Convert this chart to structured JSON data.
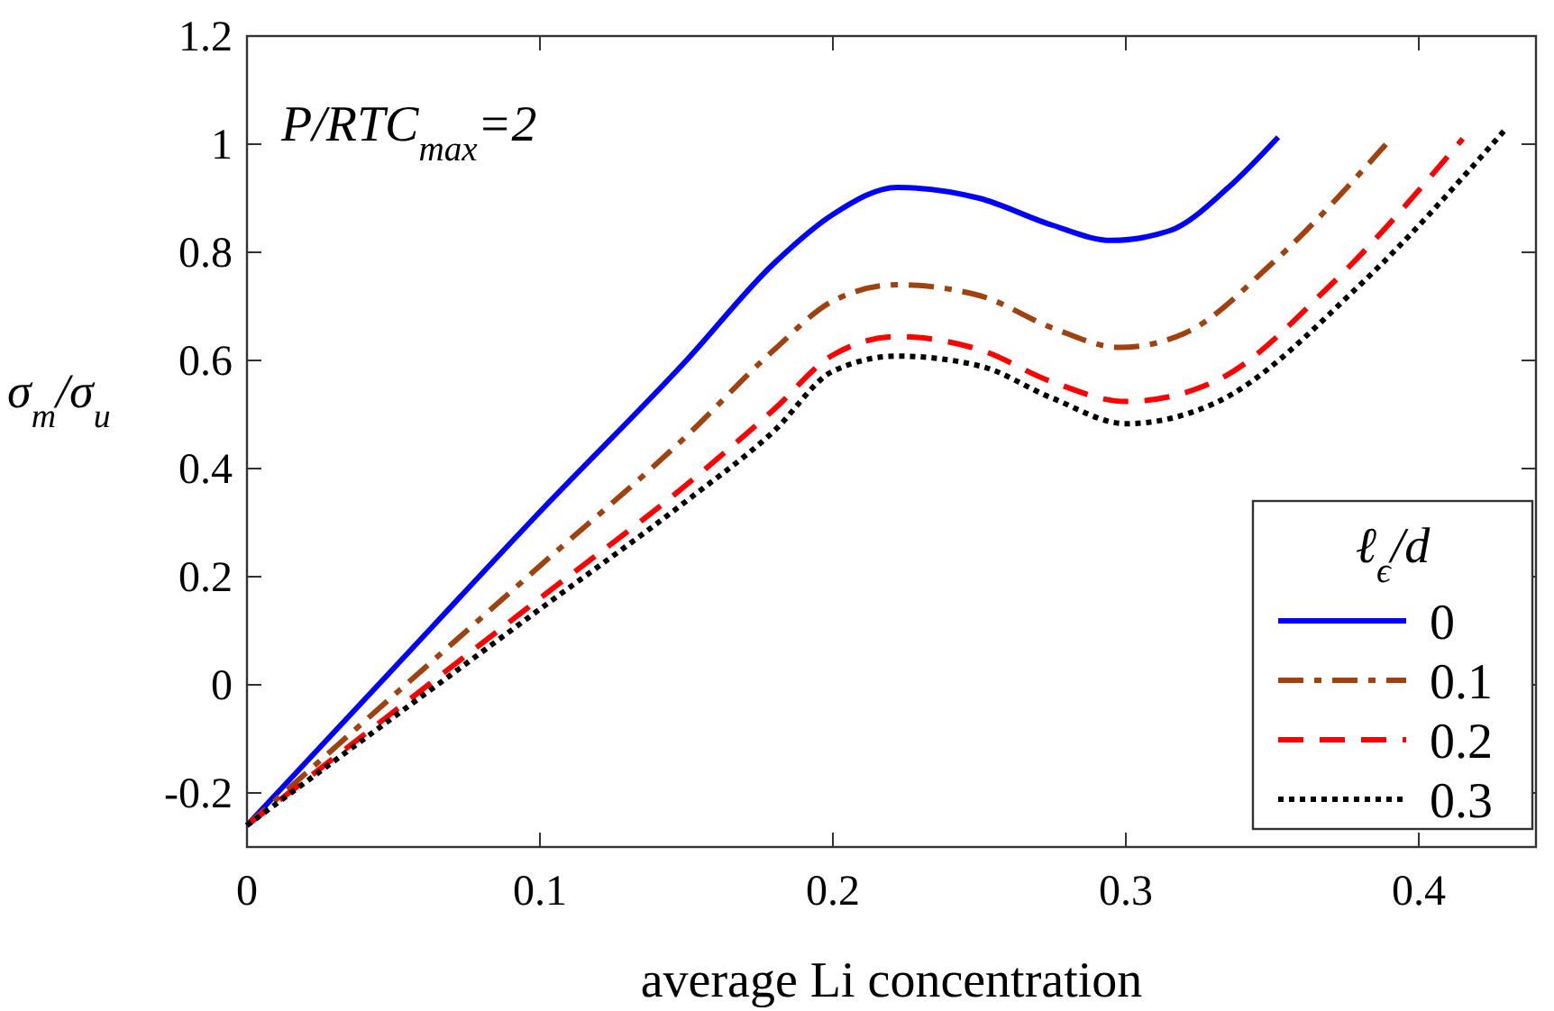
{
  "chart_data": {
    "type": "line",
    "xlabel": "average Li concentration",
    "ylabel": "σ$_{m}$/σ$_{u}$",
    "legend_title": "ℓ$_{ϵ}$/d",
    "annotations": [
      "P/RTC$_{max}$=2"
    ],
    "xlim": [
      0,
      0.44
    ],
    "xticks": [
      0,
      0.1,
      0.2,
      0.3,
      0.4
    ],
    "ylim": [
      -0.3,
      1.2
    ],
    "yticks": [
      -0.2,
      0,
      0.2,
      0.4,
      0.6,
      0.8,
      1,
      1.2
    ],
    "grid": false,
    "legend": "bottom right",
    "series": [
      {
        "name": "0",
        "color": "#0000ff",
        "line_style": "solid",
        "x": [
          0,
          0.05,
          0.1,
          0.15,
          0.18,
          0.2,
          0.222,
          0.25,
          0.275,
          0.295,
          0.315,
          0.335,
          0.352
        ],
        "values": [
          -0.26,
          0.03,
          0.32,
          0.6,
          0.78,
          0.87,
          0.92,
          0.9,
          0.85,
          0.822,
          0.84,
          0.92,
          1.013
        ]
      },
      {
        "name": "0.1",
        "color": "#a0420f",
        "line_style": "dashdot",
        "x": [
          0,
          0.05,
          0.1,
          0.15,
          0.18,
          0.2,
          0.222,
          0.25,
          0.275,
          0.298,
          0.32,
          0.35,
          0.39
        ],
        "values": [
          -0.26,
          -0.02,
          0.22,
          0.46,
          0.62,
          0.71,
          0.74,
          0.72,
          0.66,
          0.624,
          0.65,
          0.78,
          1.007
        ]
      },
      {
        "name": "0.2",
        "color": "#ff0000",
        "line_style": "dashed",
        "x": [
          0,
          0.05,
          0.1,
          0.15,
          0.18,
          0.2,
          0.222,
          0.25,
          0.275,
          0.3,
          0.33,
          0.37,
          0.415
        ],
        "values": [
          -0.26,
          -0.05,
          0.16,
          0.37,
          0.51,
          0.61,
          0.644,
          0.62,
          0.56,
          0.524,
          0.56,
          0.74,
          1.01
        ]
      },
      {
        "name": "0.3",
        "color": "#000000",
        "line_style": "dotted",
        "x": [
          0,
          0.05,
          0.1,
          0.15,
          0.18,
          0.2,
          0.222,
          0.25,
          0.275,
          0.3,
          0.33,
          0.38,
          0.429
        ],
        "values": [
          -0.26,
          -0.06,
          0.14,
          0.34,
          0.47,
          0.58,
          0.608,
          0.59,
          0.53,
          0.483,
          0.52,
          0.74,
          1.024
        ]
      }
    ]
  }
}
